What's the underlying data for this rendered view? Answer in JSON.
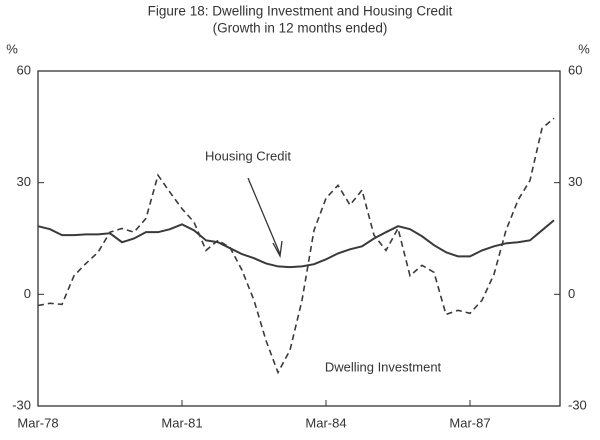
{
  "chart_data": {
    "type": "line",
    "title": "Figure 18: Dwelling Investment and Housing Credit",
    "subtitle": "(Growth in 12 months ended)",
    "y_unit": "%",
    "y2_unit": "%",
    "categories": [
      "Mar-78",
      null,
      null,
      null,
      null,
      null,
      null,
      null,
      null,
      null,
      null,
      null,
      "Mar-81",
      null,
      null,
      null,
      null,
      null,
      null,
      null,
      null,
      null,
      null,
      null,
      "Mar-84",
      null,
      null,
      null,
      null,
      null,
      null,
      null,
      null,
      null,
      null,
      null,
      "Mar-87",
      null,
      null,
      null,
      null,
      null,
      null,
      null
    ],
    "series": [
      {
        "name": "Housing Credit",
        "color": "#3a3a3a",
        "line_style": "solid",
        "values": [
          18.3,
          17.5,
          15.9,
          15.9,
          16.1,
          16.1,
          16.4,
          14,
          15,
          16.7,
          16.7,
          17.5,
          18.8,
          17.2,
          14.5,
          14,
          12.4,
          10.8,
          9.7,
          8.3,
          7.5,
          7.3,
          7.5,
          8.1,
          9.4,
          11,
          12.1,
          12.9,
          15,
          16.7,
          18.3,
          17.5,
          15.6,
          13.2,
          11.3,
          10.2,
          10.2,
          11.8,
          12.9,
          13.7,
          14,
          14.5,
          17.2,
          19.9
        ]
      },
      {
        "name": "Dwelling Investment",
        "color": "#3a3a3a",
        "line_style": "dashed",
        "values": [
          -3,
          -2.4,
          -2.7,
          5,
          8.3,
          11.3,
          16.7,
          17.7,
          16.7,
          20.4,
          32,
          27.4,
          23,
          19.4,
          11.8,
          14.5,
          12.6,
          6.5,
          -1.6,
          -12.4,
          -21,
          -15,
          -1.6,
          17.2,
          25.8,
          29.3,
          24,
          28,
          15.9,
          11.8,
          17.7,
          5,
          7.8,
          5.9,
          -5.4,
          -4.3,
          -5.1,
          -1.6,
          5.4,
          17.2,
          25.3,
          30.6,
          44.6,
          47.3
        ]
      }
    ],
    "ylim": [
      -30,
      60
    ],
    "yticks": [
      -30,
      0,
      30,
      60
    ],
    "y2lim": [
      -30,
      60
    ],
    "y2ticks": [
      -30,
      0,
      30,
      60
    ],
    "grid": false
  }
}
